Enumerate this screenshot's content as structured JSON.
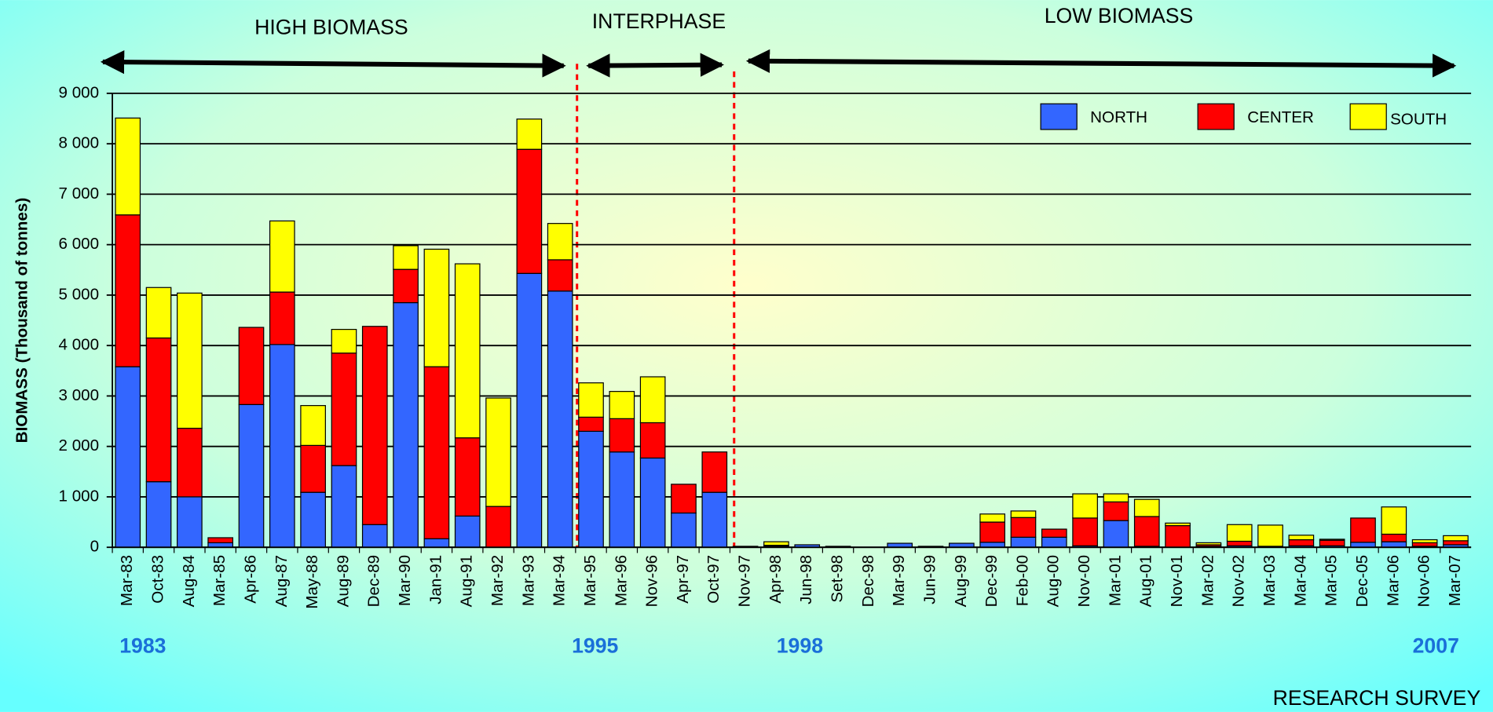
{
  "chart_data": {
    "type": "stacked_bar",
    "y_label": "BIOMASS (Thousand of tonnes)",
    "annotations": [
      "HIGH BIOMASS",
      "INTERPHASE",
      "LOW BIOMASS",
      "1983",
      "1995",
      "1998",
      "2007",
      "RESEARCH SURVEY"
    ],
    "categories": [
      "Mar-83",
      "Oct-83",
      "Aug-84",
      "Mar-85",
      "Apr-86",
      "Aug-87",
      "May-88",
      "Aug-89",
      "Dec-89",
      "Mar-90",
      "Jan-91",
      "Aug-91",
      "Mar-92",
      "Mar-93",
      "Mar-94",
      "Mar-95",
      "Mar-96",
      "Nov-96",
      "Apr-97",
      "Oct-97",
      "Nov-97",
      "Apr-98",
      "Jun-98",
      "Set-98",
      "Dec-98",
      "Mar-99",
      "Jun-99",
      "Aug-99",
      "Dec-99",
      "Feb-00",
      "Aug-00",
      "Nov-00",
      "Mar-01",
      "Aug-01",
      "Nov-01",
      "Mar-02",
      "Nov-02",
      "Mar-03",
      "Mar-04",
      "Mar-05",
      "Dec-05",
      "Mar-06",
      "Nov-06",
      "Mar-07"
    ],
    "series": [
      {
        "name": "NORTH",
        "color": "#3366ff",
        "values": [
          3580,
          1300,
          1000,
          90,
          2830,
          4020,
          1090,
          1620,
          450,
          4850,
          170,
          620,
          0,
          5430,
          5080,
          2300,
          1890,
          1770,
          680,
          1090,
          20,
          20,
          50,
          20,
          0,
          80,
          20,
          80,
          100,
          200,
          200,
          30,
          530,
          20,
          0,
          20,
          30,
          0,
          30,
          30,
          100,
          110,
          20,
          50
        ]
      },
      {
        "name": "CENTER",
        "color": "#ff0000",
        "values": [
          3010,
          2850,
          1360,
          100,
          1530,
          1040,
          930,
          2230,
          3930,
          660,
          3410,
          1550,
          810,
          2460,
          620,
          280,
          660,
          700,
          570,
          800,
          0,
          20,
          0,
          0,
          0,
          0,
          0,
          0,
          400,
          390,
          160,
          550,
          370,
          590,
          430,
          30,
          90,
          20,
          120,
          110,
          480,
          150,
          70,
          80
        ]
      },
      {
        "name": "SOUTH",
        "color": "#ffff00",
        "values": [
          1920,
          1000,
          2680,
          0,
          0,
          1410,
          790,
          470,
          0,
          470,
          2330,
          3450,
          2150,
          600,
          720,
          680,
          540,
          910,
          0,
          0,
          0,
          70,
          0,
          0,
          0,
          0,
          0,
          0,
          160,
          130,
          0,
          480,
          160,
          340,
          50,
          40,
          330,
          420,
          90,
          20,
          0,
          540,
          60,
          100
        ]
      }
    ],
    "ylim": [
      0,
      9000
    ],
    "yticks": [
      {
        "value": 0,
        "label": "0"
      },
      {
        "value": 1000,
        "label": "1 000"
      },
      {
        "value": 2000,
        "label": "2 000"
      },
      {
        "value": 3000,
        "label": "3 000"
      },
      {
        "value": 4000,
        "label": "4 000"
      },
      {
        "value": 5000,
        "label": "5 000"
      },
      {
        "value": 6000,
        "label": "6 000"
      },
      {
        "value": 7000,
        "label": "7 000"
      },
      {
        "value": 8000,
        "label": "8 000"
      },
      {
        "value": 9000,
        "label": "9 000"
      }
    ],
    "grid": true,
    "legend": "upper right"
  }
}
